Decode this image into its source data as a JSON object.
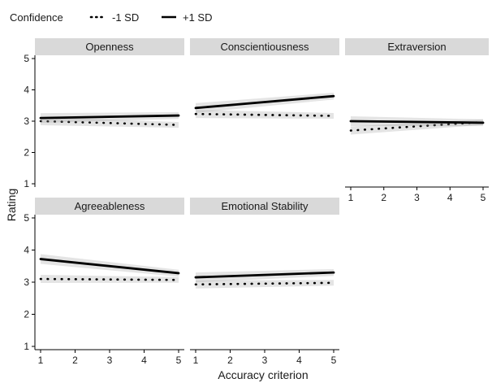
{
  "chart_data": {
    "type": "line",
    "xlabel": "Accuracy criterion",
    "ylabel": "Rating",
    "xlim": [
      1,
      5
    ],
    "ylim": [
      1,
      5
    ],
    "x_ticks": [
      "1",
      "2",
      "3",
      "4",
      "5"
    ],
    "y_ticks": [
      "1",
      "2",
      "3",
      "4",
      "5"
    ],
    "legend": {
      "title": "Confidence",
      "position": "top-left",
      "entries": [
        {
          "label": "-1 SD",
          "linestyle": "dotted"
        },
        {
          "label": "+1 SD",
          "linestyle": "solid"
        }
      ]
    },
    "panels": [
      {
        "title": "Openness",
        "series": [
          {
            "name": "-1 SD",
            "x": [
              1,
              5
            ],
            "y": [
              3.0,
              2.88
            ]
          },
          {
            "name": "+1 SD",
            "x": [
              1,
              5
            ],
            "y": [
              3.1,
              3.18
            ]
          }
        ]
      },
      {
        "title": "Conscientiousness",
        "series": [
          {
            "name": "-1 SD",
            "x": [
              1,
              5
            ],
            "y": [
              3.23,
              3.17
            ]
          },
          {
            "name": "+1 SD",
            "x": [
              1,
              5
            ],
            "y": [
              3.42,
              3.8
            ]
          }
        ]
      },
      {
        "title": "Extraversion",
        "series": [
          {
            "name": "-1 SD",
            "x": [
              1,
              5
            ],
            "y": [
              2.7,
              2.97
            ]
          },
          {
            "name": "+1 SD",
            "x": [
              1,
              5
            ],
            "y": [
              3.0,
              2.95
            ]
          }
        ]
      },
      {
        "title": "Agreeableness",
        "series": [
          {
            "name": "-1 SD",
            "x": [
              1,
              5
            ],
            "y": [
              3.1,
              3.07
            ]
          },
          {
            "name": "+1 SD",
            "x": [
              1,
              5
            ],
            "y": [
              3.72,
              3.28
            ]
          }
        ]
      },
      {
        "title": "Emotional Stability",
        "series": [
          {
            "name": "-1 SD",
            "x": [
              1,
              5
            ],
            "y": [
              2.93,
              2.98
            ]
          },
          {
            "name": "+1 SD",
            "x": [
              1,
              5
            ],
            "y": [
              3.15,
              3.3
            ]
          }
        ]
      }
    ]
  }
}
